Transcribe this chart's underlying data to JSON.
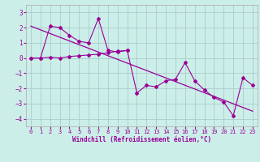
{
  "xlabel": "Windchill (Refroidissement éolien,°C)",
  "bg_color": "#cceee8",
  "line_color": "#990099",
  "grid_color": "#aacccc",
  "xlim": [
    -0.5,
    23.5
  ],
  "ylim": [
    -4.5,
    3.5
  ],
  "yticks": [
    3,
    2,
    1,
    0,
    -1,
    -2,
    -3,
    -4
  ],
  "xticks": [
    0,
    1,
    2,
    3,
    4,
    5,
    6,
    7,
    8,
    9,
    10,
    11,
    12,
    13,
    14,
    15,
    16,
    17,
    18,
    19,
    20,
    21,
    22,
    23
  ],
  "series1_x": [
    0,
    1,
    2,
    3,
    4,
    5,
    6,
    7,
    8,
    9,
    10,
    11,
    12,
    13,
    14,
    15,
    16,
    17,
    18,
    19,
    20,
    21,
    22,
    23
  ],
  "series1_y": [
    0.0,
    0.0,
    2.1,
    2.0,
    1.5,
    1.1,
    1.0,
    2.6,
    0.5,
    0.4,
    0.5,
    -2.3,
    -1.8,
    -1.9,
    -1.5,
    -1.4,
    -0.3,
    -1.5,
    -2.1,
    -2.6,
    -2.9,
    -3.8,
    -1.3,
    -1.8
  ],
  "series2_x": [
    0,
    1,
    2,
    3,
    4,
    5,
    6,
    7,
    8,
    9,
    10
  ],
  "series2_y": [
    0.0,
    0.0,
    0.05,
    0.0,
    0.1,
    0.15,
    0.2,
    0.25,
    0.35,
    0.45,
    0.5
  ],
  "trend_x": [
    0,
    23
  ],
  "trend_y": [
    2.1,
    -3.5
  ]
}
